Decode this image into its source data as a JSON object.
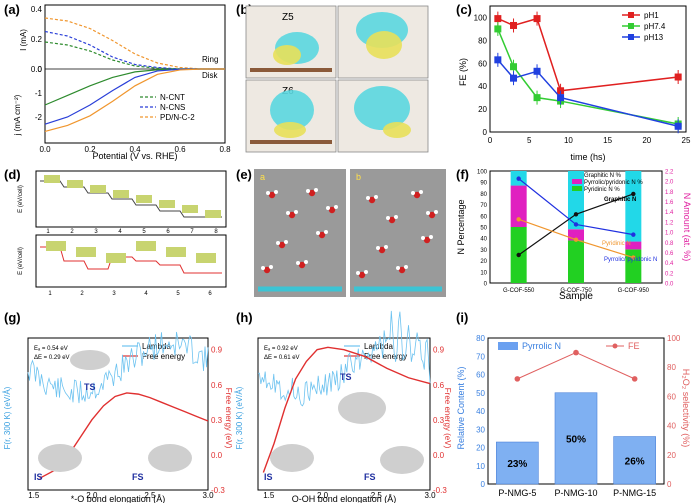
{
  "panels": {
    "a": {
      "label": "(a)",
      "ring_ylabel": "I (mA)",
      "disk_ylabel": "j (mA cm⁻²)",
      "xlabel": "Potential (V vs. RHE)",
      "ring_text": "Ring",
      "disk_text": "Disk",
      "legend": [
        "N-CNT",
        "N-CNS",
        "PD/N-C-2"
      ],
      "colors": [
        "#2e8b2e",
        "#2a3fd8",
        "#f0962e"
      ],
      "x_ticks": [
        "0.0",
        "0.2",
        "0.4",
        "0.6",
        "0.8"
      ],
      "ring_ticks": [
        "0.4",
        "0.2",
        "0.0"
      ],
      "disk_ticks": [
        "0",
        "-1",
        "-2"
      ],
      "chart_data": {
        "type": "line",
        "x": [
          0.0,
          0.1,
          0.2,
          0.3,
          0.4,
          0.5,
          0.6,
          0.7,
          0.8
        ],
        "ring_series": [
          {
            "name": "N-CNT",
            "values": [
              0.18,
              0.16,
              0.12,
              0.06,
              0.02,
              0.005,
              0.0,
              0.0,
              0.0
            ]
          },
          {
            "name": "N-CNS",
            "values": [
              0.25,
              0.22,
              0.16,
              0.08,
              0.03,
              0.01,
              0.0,
              0.0,
              0.0
            ]
          },
          {
            "name": "PD/N-C-2",
            "values": [
              0.34,
              0.32,
              0.27,
              0.19,
              0.1,
              0.04,
              0.01,
              0.0,
              0.0
            ]
          }
        ],
        "disk_series": [
          {
            "name": "N-CNT",
            "values": [
              -1.5,
              -1.1,
              -0.7,
              -0.35,
              -0.12,
              -0.03,
              0.0,
              0.0,
              0.0
            ]
          },
          {
            "name": "N-CNS",
            "values": [
              -2.3,
              -2.0,
              -1.5,
              -0.9,
              -0.35,
              -0.08,
              -0.01,
              0.0,
              0.0
            ]
          },
          {
            "name": "PD/N-C-2",
            "values": [
              -2.6,
              -2.35,
              -1.95,
              -1.35,
              -0.7,
              -0.22,
              -0.04,
              0.0,
              0.0
            ]
          }
        ],
        "xlim": [
          0.0,
          0.8
        ],
        "ring_ylim": [
          0.0,
          0.4
        ],
        "disk_ylim": [
          -3.0,
          0.2
        ]
      }
    },
    "b": {
      "label": "(b)",
      "z5": "Z5",
      "z6": "Z6"
    },
    "c": {
      "label": "(c)",
      "ylabel": "FE (%)",
      "xlabel": "time (hs)",
      "y_ticks": [
        "100",
        "80",
        "60",
        "40",
        "20",
        "0"
      ],
      "x_ticks": [
        "0",
        "5",
        "10",
        "15",
        "20",
        "25"
      ],
      "legend": [
        "pH1",
        "pH7.4",
        "pH13"
      ],
      "colors": [
        "#e02020",
        "#33cc33",
        "#2040e0"
      ],
      "chart_data": {
        "type": "line",
        "series": [
          {
            "name": "pH1",
            "x": [
              1,
              3,
              6,
              9,
              24
            ],
            "values": [
              99,
              93,
              99,
              36,
              48
            ]
          },
          {
            "name": "pH7.4",
            "x": [
              1,
              3,
              6,
              9,
              24
            ],
            "values": [
              90,
              57,
              30,
              27,
              7
            ]
          },
          {
            "name": "pH13",
            "x": [
              1,
              3,
              6,
              9,
              24
            ],
            "values": [
              63,
              47,
              53,
              30,
              5
            ]
          }
        ],
        "xlim": [
          0,
          25
        ],
        "ylim": [
          0,
          110
        ]
      }
    },
    "d": {
      "label": "(d)",
      "y1": "E (eV/cell)",
      "y2": "E (eV/cell)",
      "x_ticks": [
        "1",
        "2",
        "3",
        "4",
        "5",
        "6",
        "7",
        "8"
      ],
      "x2_ticks": [
        "1",
        "2",
        "3",
        "4",
        "5",
        "6"
      ]
    },
    "e": {
      "label": "(e)",
      "sub_a": "a",
      "sub_b": "b"
    },
    "f": {
      "label": "(f)",
      "ylabel_left": "N Percentage",
      "ylabel_right": "N Amount (at. %)",
      "xlabel": "Sample",
      "legend": [
        "Graphitic N %",
        "Pyrrolic/pyridonic N %",
        "Pyridinic N %"
      ],
      "legend_colors": [
        "#22d8e8",
        "#e020c0",
        "#22d022"
      ],
      "left_ticks": [
        "100",
        "90",
        "80",
        "70",
        "60",
        "50",
        "40",
        "30",
        "20",
        "10",
        "0"
      ],
      "right_ticks": [
        "2.2",
        "2.0",
        "1.8",
        "1.6",
        "1.4",
        "1.2",
        "1.0",
        "0.8",
        "0.6",
        "0.4",
        "0.2",
        "0.0"
      ],
      "annot_graphitic": "Graphitic N",
      "annot_pyridinic": "Pyridinic N",
      "annot_pyrrolic": "Pyrrolic/ pyridonic N",
      "chart_data": {
        "type": "bar",
        "categories": [
          "G-COF-550",
          "G-COF-750",
          "G-COF-950"
        ],
        "stacked_series": [
          {
            "name": "Pyridinic N %",
            "values": [
              50,
              38,
              30
            ]
          },
          {
            "name": "Pyrrolic/pyridonic N %",
            "values": [
              37,
              10,
              7
            ]
          },
          {
            "name": "Graphitic N %",
            "values": [
              13,
              52,
              63
            ]
          }
        ],
        "line_series": [
          {
            "name": "Graphitic N",
            "values": [
              0.55,
              1.35,
              1.75
            ]
          },
          {
            "name": "Pyrrolic/pyridonic N",
            "values": [
              2.05,
              1.15,
              0.95
            ]
          },
          {
            "name": "Pyridinic N",
            "values": [
              1.25,
              0.85,
              0.5
            ]
          }
        ],
        "ylim_left": [
          0,
          100
        ],
        "ylim_right": [
          0,
          2.2
        ]
      }
    },
    "g": {
      "label": "(g)",
      "e_a": "Eₐ = 0.54 eV",
      "delta_e": "ΔE = 0.29 eV",
      "legend": [
        "Lambda",
        "Free energy"
      ],
      "ylabel_left": "F(r, 300 K) (eV/Å)",
      "ylabel_right": "Free energy (eV)",
      "xlabel": "*-O bond elongation (Å)",
      "ts": "TS",
      "is": "IS",
      "fs": "FS",
      "x_ticks": [
        "1.5",
        "2.0",
        "2.5",
        "3.0"
      ],
      "right_ticks": [
        "0.9",
        "0.6",
        "0.3",
        "0.0",
        "-0.3"
      ],
      "chart_data": {
        "type": "line",
        "series": [
          {
            "name": "Free energy",
            "x": [
              1.55,
              1.7,
              1.8,
              1.9,
              2.0,
              2.1,
              2.2,
              2.3,
              2.4,
              2.5,
              2.6,
              2.7,
              2.8,
              2.9,
              3.0
            ],
            "values": [
              -0.2,
              -0.12,
              0.0,
              0.15,
              0.3,
              0.42,
              0.5,
              0.53,
              0.52,
              0.49,
              0.45,
              0.41,
              0.37,
              0.33,
              0.29
            ]
          }
        ],
        "xlim": [
          1.45,
          3.0
        ],
        "ylim": [
          -0.3,
          1.0
        ]
      }
    },
    "h": {
      "label": "(h)",
      "e_a": "Eₐ = 0.92 eV",
      "delta_e": "ΔE = 0.61 eV",
      "legend": [
        "Lambda",
        "Free energy"
      ],
      "ylabel_left": "F(r, 300 K) (eV/Å)",
      "ylabel_right": "Free energy (eV)",
      "xlabel": "O-OH bond elongation (Å)",
      "ts": "TS",
      "is": "IS",
      "fs": "FS",
      "x_ticks": [
        "1.5",
        "2.0",
        "2.5",
        "3.0"
      ],
      "right_ticks": [
        "0.9",
        "0.6",
        "0.3",
        "0.0",
        "-0.3"
      ],
      "chart_data": {
        "type": "line",
        "series": [
          {
            "name": "Free energy",
            "x": [
              1.45,
              1.55,
              1.65,
              1.75,
              1.85,
              1.95,
              2.05,
              2.2,
              2.4,
              2.6,
              2.8,
              3.0
            ],
            "values": [
              -0.15,
              0.1,
              0.4,
              0.65,
              0.8,
              0.9,
              0.92,
              0.9,
              0.84,
              0.74,
              0.66,
              0.61
            ]
          }
        ],
        "xlim": [
          1.4,
          3.0
        ],
        "ylim": [
          -0.3,
          1.0
        ]
      }
    },
    "i": {
      "label": "(i)",
      "legend_bar": "Pyrrolic N",
      "legend_line": "FE",
      "ylabel_left": "Relative Content (%)",
      "ylabel_right": "H₂O₂ selectivity (%)",
      "left_ticks": [
        "80",
        "70",
        "60",
        "50",
        "40",
        "30",
        "20",
        "10",
        "0"
      ],
      "right_ticks": [
        "100",
        "80",
        "60",
        "40",
        "20",
        "0"
      ],
      "chart_data": {
        "type": "bar",
        "categories": [
          "P-NMG-5",
          "P-NMG-10",
          "P-NMG-15"
        ],
        "values": [
          23,
          50,
          26
        ],
        "bar_labels": [
          "23%",
          "50%",
          "26%"
        ],
        "line_series": {
          "name": "FE",
          "values": [
            72,
            90,
            72
          ]
        },
        "ylim_left": [
          0,
          80
        ],
        "ylim_right": [
          0,
          100
        ]
      }
    }
  }
}
